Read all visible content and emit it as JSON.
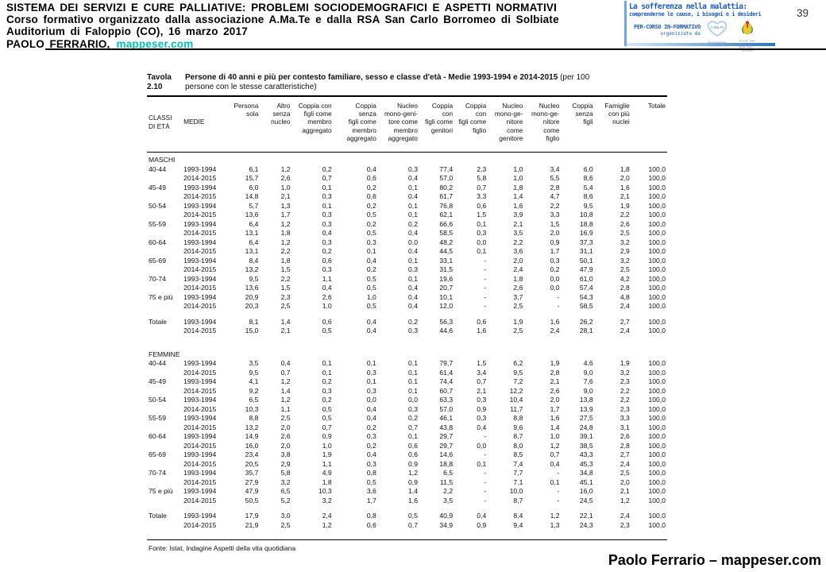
{
  "header": {
    "line1": "SISTEMA DEI SERVIZI E CURE PALLIATIVE: PROBLEMI SOCIODEMOGRAFICI E ASPETTI NORMATIVI",
    "line2": "Corso formativo organizzato dalla associazione A.Ma.Te e dalla RSA San Carlo Borromeo di Solbiate",
    "line3": "Auditorium di Faloppio (CO), 16 marzo 2017",
    "author": "PAOLO FERRARIO,",
    "link": "mappeser.com",
    "page_number": "39",
    "link_color": "#00bdb8"
  },
  "logo_box": {
    "line1": "La sofferenza nella malattia:",
    "line2": "comprenderne le cause, i bisogni e i desideri",
    "line3": "PER-CORSO IN-FORMATIVO",
    "line4": "organizzato da",
    "logo1_label": "A.Ma.Te",
    "logo1_caption": "Associazione A.Ma.Te Onlus",
    "logo2_caption": "R.S.A. San Carlo Borromeo - Solbiate",
    "accent_blue": "#1b5ac2"
  },
  "table": {
    "title_label": "Tavola 2.10",
    "title_bold": "Persone di 40 anni e più per contesto familiare, sesso e classe d'età - Medie 1993-1994 e 2014-2015",
    "title_note1": "(per 100",
    "title_note2": "persone con le stesse caratteristiche)",
    "side_headers": [
      "CLASSI\nDI ETÀ",
      "MEDIE"
    ],
    "columns": [
      "Persona\nsola",
      "Altro\nsenza\nnucleo",
      "Coppia con\nfigli come\nmembro\naggregato",
      "Coppia\nsenza\nfigli come\nmembro\naggregato",
      "Nucleo\nmono-geni-\ntore come\nmembro\naggregato",
      "Coppia\ncon\nfigli come\ngenitori",
      "Coppia\ncon\nfigli come\nfiglio",
      "Nucleo\nmono-ge-\nnitore\ncome\ngenitore",
      "Nucleo\nmono-ge-\nnitore\ncome\nfiglio",
      "Coppia\nsenza\nfigli",
      "Famiglie\ncon più\nnuclei",
      "Totale"
    ],
    "sections": [
      {
        "label": "MASCHI",
        "rows": [
          [
            "40-44",
            "1993-1994",
            "6,1",
            "1,2",
            "0,2",
            "0,4",
            "0,3",
            "77,4",
            "2,3",
            "1,0",
            "3,4",
            "6,0",
            "1,8",
            "100,0"
          ],
          [
            "",
            "2014-2015",
            "15,7",
            "2,6",
            "0,7",
            "0,6",
            "0,4",
            "57,0",
            "5,8",
            "1,0",
            "5,5",
            "8,6",
            "2,0",
            "100,0"
          ],
          [
            "45-49",
            "1993-1994",
            "6,0",
            "1,0",
            "0,1",
            "0,2",
            "0,1",
            "80,2",
            "0,7",
            "1,8",
            "2,8",
            "5,4",
            "1,6",
            "100,0"
          ],
          [
            "",
            "2014-2015",
            "14,8",
            "2,1",
            "0,3",
            "0,6",
            "0,4",
            "61,7",
            "3,3",
            "1,4",
            "4,7",
            "8,6",
            "2,1",
            "100,0"
          ],
          [
            "50-54",
            "1993-1994",
            "5,7",
            "1,3",
            "0,1",
            "0,2",
            "0,1",
            "76,8",
            "0,6",
            "1,6",
            "2,2",
            "9,5",
            "1,9",
            "100,0"
          ],
          [
            "",
            "2014-2015",
            "13,6",
            "1,7",
            "0,3",
            "0,5",
            "0,1",
            "62,1",
            "1,5",
            "3,9",
            "3,3",
            "10,8",
            "2,2",
            "100,0"
          ],
          [
            "55-59",
            "1993-1994",
            "6,4",
            "1,2",
            "0,3",
            "0,2",
            "0,2",
            "66,6",
            "0,1",
            "2,1",
            "1,5",
            "18,8",
            "2,6",
            "100,0"
          ],
          [
            "",
            "2014-2015",
            "13,1",
            "1,8",
            "0,4",
            "0,5",
            "0,4",
            "58,5",
            "0,3",
            "3,5",
            "2,0",
            "16,9",
            "2,5",
            "100,0"
          ],
          [
            "60-64",
            "1993-1994",
            "6,4",
            "1,2",
            "0,3",
            "0,3",
            "0,0",
            "48,2",
            "0,0",
            "2,2",
            "0,9",
            "37,3",
            "3,2",
            "100,0"
          ],
          [
            "",
            "2014-2015",
            "13,1",
            "2,2",
            "0,2",
            "0,1",
            "0,4",
            "44,5",
            "0,1",
            "3,6",
            "1,7",
            "31,1",
            "2,9",
            "100,0"
          ],
          [
            "65-69",
            "1993-1994",
            "8,4",
            "1,8",
            "0,6",
            "0,4",
            "0,1",
            "33,1",
            "-",
            "2,0",
            "0,3",
            "50,1",
            "3,2",
            "100,0"
          ],
          [
            "",
            "2014-2015",
            "13,2",
            "1,5",
            "0,3",
            "0,2",
            "0,3",
            "31,5",
            "-",
            "2,4",
            "0,2",
            "47,9",
            "2,5",
            "100,0"
          ],
          [
            "70-74",
            "1993-1994",
            "9,5",
            "2,2",
            "1,1",
            "0,5",
            "0,1",
            "19,6",
            "-",
            "1,8",
            "0,0",
            "61,0",
            "4,2",
            "100,0"
          ],
          [
            "",
            "2014-2015",
            "13,6",
            "1,5",
            "0,4",
            "0,5",
            "0,4",
            "20,7",
            "-",
            "2,6",
            "0,0",
            "57,4",
            "2,8",
            "100,0"
          ],
          [
            "75 e più",
            "1993-1994",
            "20,9",
            "2,3",
            "2,6",
            "1,0",
            "0,4",
            "10,1",
            "-",
            "3,7",
            "-",
            "54,3",
            "4,8",
            "100,0"
          ],
          [
            "",
            "2014-2015",
            "20,3",
            "2,5",
            "1,0",
            "0,5",
            "0,4",
            "12,0",
            "-",
            "2,5",
            "-",
            "58,5",
            "2,4",
            "100,0"
          ]
        ],
        "totals": [
          [
            "Totale",
            "1993-1994",
            "8,1",
            "1,4",
            "0,6",
            "0,4",
            "0,2",
            "56,3",
            "0,6",
            "1,9",
            "1,6",
            "26,2",
            "2,7",
            "100,0"
          ],
          [
            "",
            "2014-2015",
            "15,0",
            "2,1",
            "0,5",
            "0,4",
            "0,3",
            "44,6",
            "1,6",
            "2,5",
            "2,4",
            "28,1",
            "2,4",
            "100,0"
          ]
        ]
      },
      {
        "label": "FEMMINE",
        "rows": [
          [
            "40-44",
            "1993-1994",
            "3,5",
            "0,4",
            "0,1",
            "0,1",
            "0,1",
            "79,7",
            "1,5",
            "6,2",
            "1,9",
            "4,6",
            "1,9",
            "100,0"
          ],
          [
            "",
            "2014-2015",
            "9,5",
            "0,7",
            "0,1",
            "0,3",
            "0,1",
            "61,4",
            "3,4",
            "9,5",
            "2,8",
            "9,0",
            "3,2",
            "100,0"
          ],
          [
            "45-49",
            "1993-1994",
            "4,1",
            "1,2",
            "0,2",
            "0,1",
            "0,1",
            "74,4",
            "0,7",
            "7,2",
            "2,1",
            "7,6",
            "2,3",
            "100,0"
          ],
          [
            "",
            "2014-2015",
            "9,2",
            "1,4",
            "0,3",
            "0,3",
            "0,1",
            "60,7",
            "2,1",
            "12,2",
            "2,6",
            "9,0",
            "2,2",
            "100,0"
          ],
          [
            "50-54",
            "1993-1994",
            "6,5",
            "1,2",
            "0,2",
            "0,0",
            "0,0",
            "63,3",
            "0,3",
            "10,4",
            "2,0",
            "13,8",
            "2,2",
            "100,0"
          ],
          [
            "",
            "2014-2015",
            "10,3",
            "1,1",
            "0,5",
            "0,4",
            "0,3",
            "57,0",
            "0,9",
            "11,7",
            "1,7",
            "13,9",
            "2,3",
            "100,0"
          ],
          [
            "55-59",
            "1993-1994",
            "8,8",
            "2,5",
            "0,5",
            "0,4",
            "0,2",
            "46,1",
            "0,3",
            "8,8",
            "1,6",
            "27,5",
            "3,3",
            "100,0"
          ],
          [
            "",
            "2014-2015",
            "13,2",
            "2,0",
            "0,7",
            "0,2",
            "0,7",
            "43,8",
            "0,4",
            "9,6",
            "1,4",
            "24,8",
            "3,1",
            "100,0"
          ],
          [
            "60-64",
            "1993-1994",
            "14,9",
            "2,6",
            "0,9",
            "0,3",
            "0,1",
            "29,7",
            "-",
            "8,7",
            "1,0",
            "39,1",
            "2,6",
            "100,0"
          ],
          [
            "",
            "2014-2015",
            "16,0",
            "2,0",
            "1,0",
            "0,2",
            "0,6",
            "29,7",
            "0,0",
            "8,0",
            "1,2",
            "38,5",
            "2,8",
            "100,0"
          ],
          [
            "65-69",
            "1993-1994",
            "23,4",
            "3,8",
            "1,9",
            "0,4",
            "0,6",
            "14,6",
            "-",
            "8,5",
            "0,7",
            "43,3",
            "2,7",
            "100,0"
          ],
          [
            "",
            "2014-2015",
            "20,5",
            "2,9",
            "1,1",
            "0,3",
            "0,9",
            "18,8",
            "0,1",
            "7,4",
            "0,4",
            "45,3",
            "2,4",
            "100,0"
          ],
          [
            "70-74",
            "1993-1994",
            "35,7",
            "5,8",
            "4,9",
            "0,8",
            "1,2",
            "6,5",
            "-",
            "7,7",
            "-",
            "34,8",
            "2,5",
            "100,0"
          ],
          [
            "",
            "2014-2015",
            "27,9",
            "3,2",
            "1,8",
            "0,5",
            "0,9",
            "11,5",
            "-",
            "7,1",
            "0,1",
            "45,1",
            "2,0",
            "100,0"
          ],
          [
            "75 e più",
            "1993-1994",
            "47,9",
            "6,5",
            "10,3",
            "3,6",
            "1,4",
            "2,2",
            "-",
            "10,0",
            "-",
            "16,0",
            "2,1",
            "100,0"
          ],
          [
            "",
            "2014-2015",
            "50,5",
            "5,2",
            "3,2",
            "1,7",
            "1,6",
            "3,5",
            "-",
            "8,7",
            "-",
            "24,5",
            "1,2",
            "100,0"
          ]
        ],
        "totals": [
          [
            "Totale",
            "1993-1994",
            "17,9",
            "3,0",
            "2,4",
            "0,8",
            "0,5",
            "40,9",
            "0,4",
            "8,4",
            "1,2",
            "22,1",
            "2,4",
            "100,0"
          ],
          [
            "",
            "2014-2015",
            "21,9",
            "2,5",
            "1,2",
            "0,6",
            "0,7",
            "34,9",
            "0,9",
            "9,4",
            "1,3",
            "24,3",
            "2,3",
            "100,0"
          ]
        ]
      }
    ],
    "fonte": "Fonte: Istat, Indagine Aspetti della vita quotidiana"
  },
  "footer": {
    "text": "Paolo Ferrario – mappeser.com"
  }
}
